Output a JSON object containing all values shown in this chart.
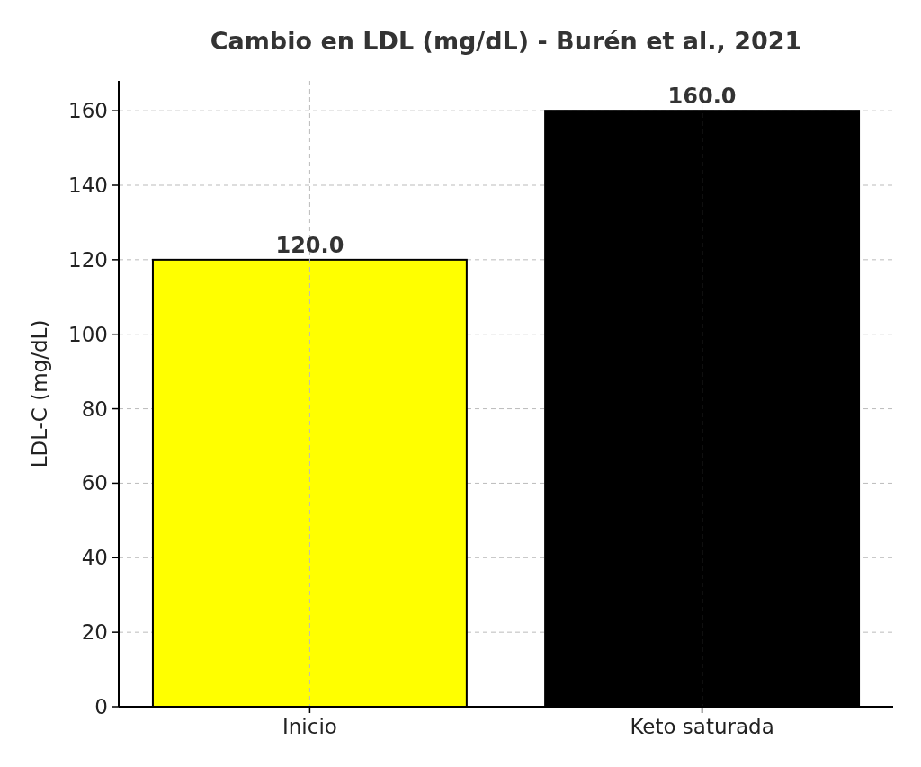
{
  "chart_data": {
    "type": "bar",
    "title": "Cambio en LDL (mg/dL) - Burén et al., 2021",
    "ylabel": "LDL-C (mg/dL)",
    "categories": [
      "Inicio",
      "Keto saturada"
    ],
    "values": [
      120.0,
      160.0
    ],
    "colors": [
      "#ffff00",
      "#000000"
    ],
    "ylim": [
      0,
      168
    ],
    "yticks": [
      0,
      20,
      40,
      60,
      80,
      100,
      120,
      140,
      160
    ],
    "value_labels": [
      "120.0",
      "160.0"
    ],
    "grid": true
  }
}
